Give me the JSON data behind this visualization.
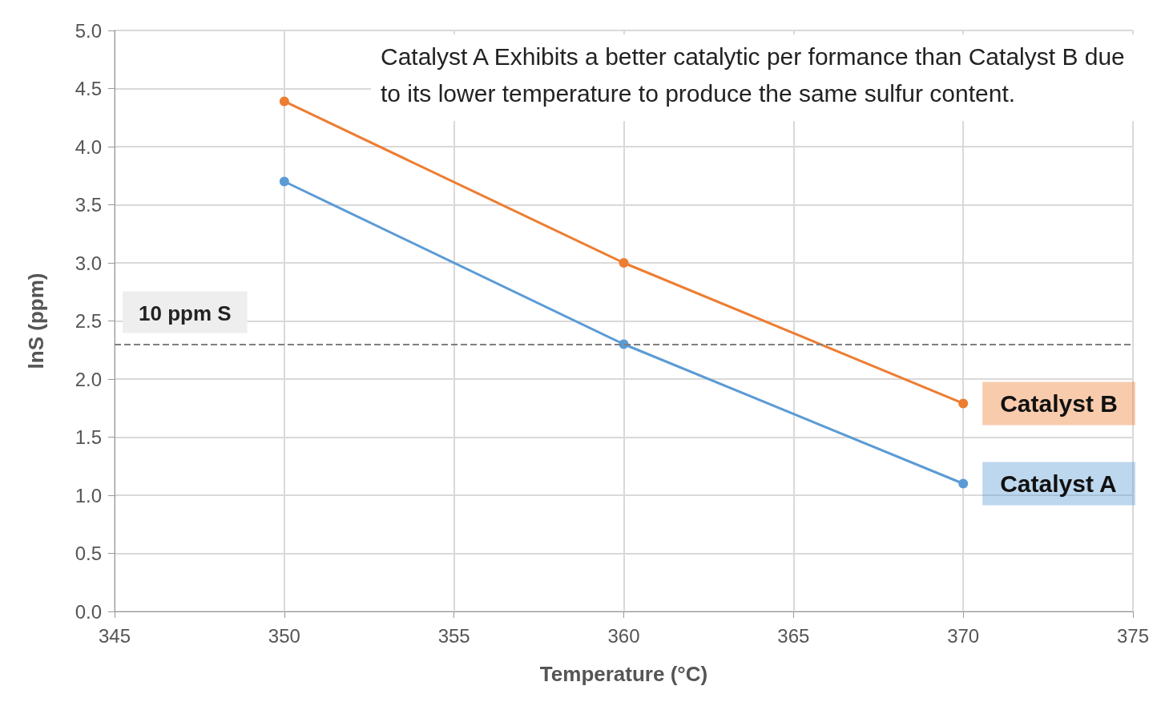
{
  "chart_data": {
    "type": "line",
    "title": "Catalyst A Exhibits a better catalytic per formance than Catalyst B due to its lower temperature to produce the same sulfur content.",
    "xlabel": "Temperature (°C)",
    "ylabel": "lnS (ppm)",
    "x": [
      350,
      360,
      370
    ],
    "series": [
      {
        "name": "Catalyst B",
        "color": "#ed7d31",
        "values": [
          4.39,
          3.0,
          1.79
        ]
      },
      {
        "name": "Catalyst A",
        "color": "#5b9bd5",
        "values": [
          3.7,
          2.3,
          1.1
        ]
      }
    ],
    "xlim": [
      345,
      375
    ],
    "xticks": [
      345,
      350,
      355,
      360,
      365,
      370,
      375
    ],
    "ylim": [
      0,
      5
    ],
    "yticks": [
      {
        "value": 0,
        "label": "0.0"
      },
      0.5,
      {
        "value": 1,
        "label": "1.0"
      },
      1.5,
      {
        "value": 2,
        "label": "2.0"
      },
      2.5,
      {
        "value": 3,
        "label": "3.0"
      },
      3.5,
      {
        "value": 4,
        "label": "4.0"
      },
      4.5,
      {
        "value": 5,
        "label": "5.0"
      }
    ],
    "ref_lines": [
      {
        "axis": "y",
        "value": 2.3,
        "label": "10 ppm S",
        "color": "#7f7f7f",
        "line_style": "dashed"
      }
    ],
    "grid": true,
    "legend": false,
    "marker": "circle",
    "line_style": "solid"
  }
}
